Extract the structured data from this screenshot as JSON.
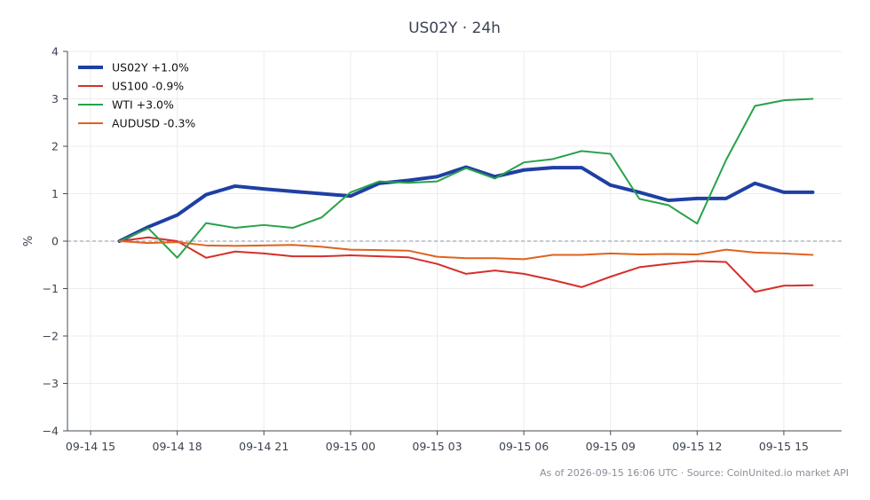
{
  "chart_data": {
    "type": "line",
    "title": "US02Y · 24h",
    "ylabel": "%",
    "ylim": [
      -4,
      4
    ],
    "yticks": [
      4,
      3,
      2,
      1,
      0,
      -1,
      -2,
      -3,
      -4
    ],
    "ytick_labels": [
      "4",
      "3",
      "2",
      "1",
      "0",
      "−1",
      "−2",
      "−3",
      "−4"
    ],
    "xlim_hours": [
      -0.8,
      26
    ],
    "xticks": [
      {
        "label": "09-14 15",
        "hour": 0
      },
      {
        "label": "09-14 18",
        "hour": 3
      },
      {
        "label": "09-14 21",
        "hour": 6
      },
      {
        "label": "09-15 00",
        "hour": 9
      },
      {
        "label": "09-15 03",
        "hour": 12
      },
      {
        "label": "09-15 06",
        "hour": 15
      },
      {
        "label": "09-15 09",
        "hour": 18
      },
      {
        "label": "09-15 12",
        "hour": 21
      },
      {
        "label": "09-15 15",
        "hour": 24
      }
    ],
    "x_hours": [
      1,
      2,
      3,
      4,
      5,
      6,
      7,
      8,
      9,
      10,
      11,
      12,
      13,
      14,
      15,
      16,
      17,
      18,
      19,
      20,
      21,
      22,
      23,
      24,
      25
    ],
    "zero_line": true,
    "grid": true,
    "legend_position": "top-left",
    "series": [
      {
        "name": "US02Y +1.0%",
        "color": "#1f3fa3",
        "width": 4,
        "values": [
          0.0,
          0.3,
          0.55,
          0.98,
          1.16,
          1.1,
          1.05,
          1.0,
          0.95,
          1.22,
          1.28,
          1.36,
          1.56,
          1.36,
          1.5,
          1.55,
          1.55,
          1.18,
          1.03,
          0.86,
          0.9,
          0.9,
          1.22,
          1.03,
          1.03
        ]
      },
      {
        "name": "US100 -0.9%",
        "color": "#d62f2a",
        "width": 2,
        "values": [
          0.0,
          0.08,
          0.0,
          -0.35,
          -0.22,
          -0.26,
          -0.32,
          -0.32,
          -0.3,
          -0.32,
          -0.34,
          -0.48,
          -0.69,
          -0.62,
          -0.69,
          -0.82,
          -0.97,
          -0.75,
          -0.55,
          -0.48,
          -0.42,
          -0.44,
          -1.07,
          -0.94,
          -0.93
        ]
      },
      {
        "name": "WTI +3.0%",
        "color": "#27a24a",
        "width": 2,
        "values": [
          0.0,
          0.27,
          -0.35,
          0.38,
          0.28,
          0.34,
          0.28,
          0.5,
          1.03,
          1.26,
          1.23,
          1.26,
          1.54,
          1.32,
          1.66,
          1.73,
          1.9,
          1.84,
          0.89,
          0.76,
          0.37,
          1.71,
          2.85,
          2.97,
          3.0
        ]
      },
      {
        "name": "AUDUSD -0.3%",
        "color": "#e0621e",
        "width": 2,
        "values": [
          0.0,
          -0.04,
          -0.02,
          -0.09,
          -0.1,
          -0.09,
          -0.08,
          -0.12,
          -0.18,
          -0.19,
          -0.2,
          -0.33,
          -0.36,
          -0.36,
          -0.38,
          -0.29,
          -0.29,
          -0.26,
          -0.28,
          -0.27,
          -0.28,
          -0.18,
          -0.24,
          -0.26,
          -0.29
        ]
      }
    ],
    "footer": "As of 2026-09-15 16:06 UTC · Source: CoinUnited.io market API"
  }
}
